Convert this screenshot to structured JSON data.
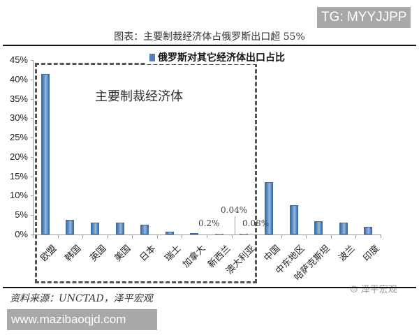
{
  "watermarks": {
    "top_right": "TG: MYYJJPP",
    "bottom_left": "www.mazibaoqjd.com",
    "brand": "☺ 泽平宏观"
  },
  "header": {
    "title": "图表：主要制裁经济体占俄罗斯出口超 55%"
  },
  "legend": {
    "label": "俄罗斯对其它经济体出口占比",
    "color": "#4f81bd"
  },
  "annotations": {
    "box_label": "主要制裁经济体",
    "canada_value": "0.2%",
    "nz_value": "0.04%",
    "australia_value": "0.08%"
  },
  "footer": {
    "source": "资料来源：UNCTAD，泽平宏观"
  },
  "yaxis": {
    "ticks": [
      "45%",
      "40%",
      "35%",
      "30%",
      "25%",
      "20%",
      "15%",
      "10%",
      "5%",
      "0%"
    ]
  },
  "chart_data": {
    "type": "bar",
    "title": "图表：主要制裁经济体占俄罗斯出口超 55%",
    "xlabel": "",
    "ylabel": "",
    "ylim": [
      0,
      45
    ],
    "yticks": [
      0,
      5,
      10,
      15,
      20,
      25,
      30,
      35,
      40,
      45
    ],
    "legend": [
      "俄罗斯对其它经济体出口占比"
    ],
    "legend_position": "top",
    "grid": false,
    "categories": [
      "欧盟",
      "韩国",
      "英国",
      "美国",
      "日本",
      "瑞士",
      "加拿大",
      "新西兰",
      "澳大利亚",
      "中国",
      "中东地区",
      "哈萨克斯坦",
      "波兰",
      "印度"
    ],
    "series": [
      {
        "name": "俄罗斯对其它经济体出口占比",
        "values": [
          41.4,
          3.8,
          3.0,
          3.0,
          2.6,
          0.8,
          0.2,
          0.04,
          0.08,
          13.5,
          7.6,
          3.5,
          3.1,
          2.0
        ],
        "color": "#4f81bd"
      }
    ],
    "annotations": [
      {
        "text": "主要制裁经济体",
        "note": "dashed box enclosing 欧盟 through 澳大利亚"
      },
      {
        "text": "0.2%",
        "category": "加拿大"
      },
      {
        "text": "0.04%",
        "category": "新西兰"
      },
      {
        "text": "0.08%",
        "category": "澳大利亚"
      }
    ],
    "source": "资料来源：UNCTAD，泽平宏观"
  }
}
